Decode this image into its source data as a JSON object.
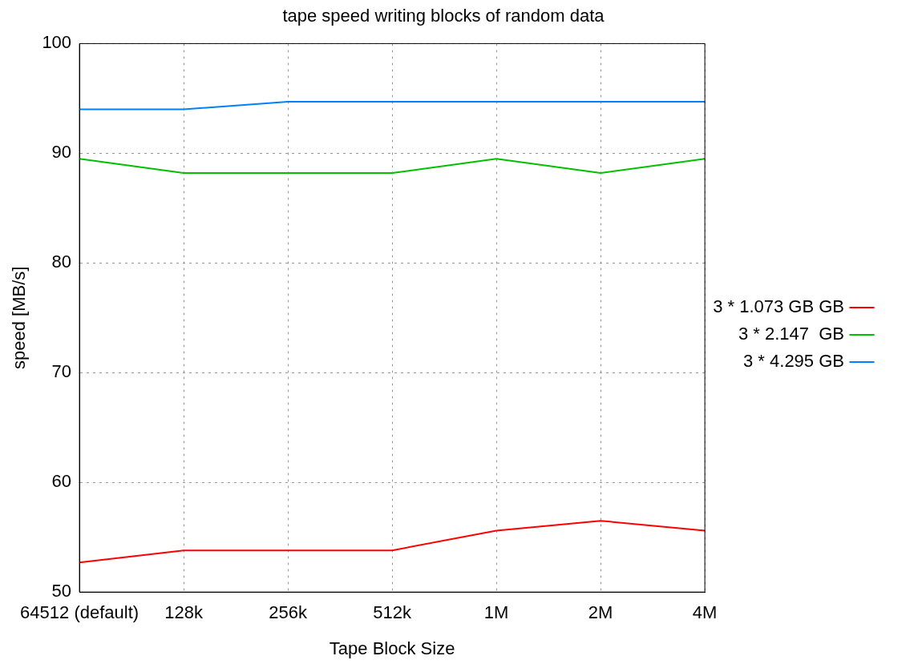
{
  "chart_data": {
    "type": "line",
    "title": "tape speed writing blocks of random data",
    "xlabel": "Tape Block Size",
    "ylabel": "speed [MB/s]",
    "categories": [
      "64512 (default)",
      "128k",
      "256k",
      "512k",
      "1M",
      "2M",
      "4M"
    ],
    "series": [
      {
        "name": "3 * 1.073 GB GB",
        "color": "#ff0000",
        "values": [
          52.7,
          53.8,
          53.8,
          53.8,
          55.6,
          56.5,
          55.6
        ]
      },
      {
        "name": "3 * 2.147  GB",
        "color": "#00c000",
        "values": [
          89.5,
          88.2,
          88.2,
          88.2,
          89.5,
          88.2,
          89.5
        ]
      },
      {
        "name": "3 * 4.295 GB",
        "color": "#0080ff",
        "values": [
          94.0,
          94.0,
          94.7,
          94.7,
          94.7,
          94.7,
          94.7
        ]
      }
    ],
    "ylim": [
      50,
      100
    ],
    "yticks": [
      50,
      60,
      70,
      80,
      90,
      100
    ],
    "grid": true,
    "legend": "right",
    "marker": "none",
    "line_style": "solid"
  }
}
